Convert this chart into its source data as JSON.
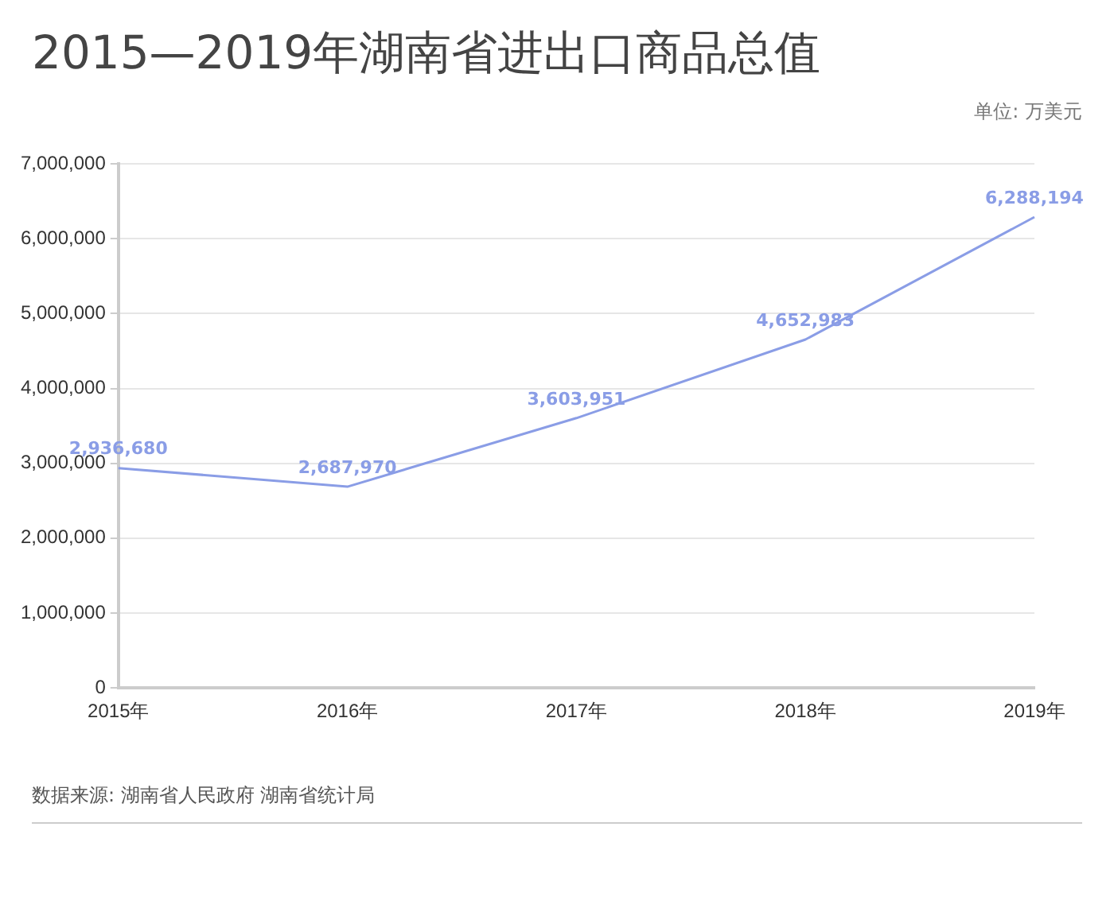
{
  "chart_data": {
    "type": "line",
    "title": "2015—2019年湖南省进出口商品总值",
    "subtitle": "单位: 万美元",
    "categories": [
      "2015年",
      "2016年",
      "2017年",
      "2018年",
      "2019年"
    ],
    "series": [
      {
        "color": "#8a9de6",
        "values": [
          2936680,
          2687970,
          3603951,
          4652983,
          6288194
        ],
        "value_labels": [
          "2,936,680",
          "2,687,970",
          "3,603,951",
          "4,652,983",
          "6,288,194"
        ]
      }
    ],
    "ylim": [
      0,
      7000000
    ],
    "yticks": [
      {
        "value": 0,
        "label": "0"
      },
      {
        "value": 1000000,
        "label": "1,000,000"
      },
      {
        "value": 2000000,
        "label": "2,000,000"
      },
      {
        "value": 3000000,
        "label": "3,000,000"
      },
      {
        "value": 4000000,
        "label": "4,000,000"
      },
      {
        "value": 5000000,
        "label": "5,000,000"
      },
      {
        "value": 6000000,
        "label": "6,000,000"
      },
      {
        "value": 7000000,
        "label": "7,000,000"
      }
    ],
    "grid": "y",
    "legend": false,
    "marker": "none",
    "annotations": [
      "数据来源: 湖南省人民政府 湖南省统计局"
    ]
  }
}
